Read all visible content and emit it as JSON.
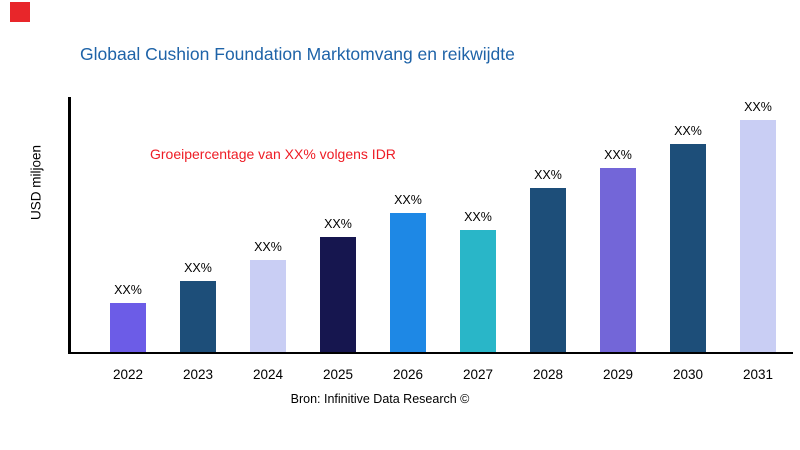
{
  "header": {
    "title": "Globaal Cushion Foundation Marktomvang en reikwijdte",
    "title_color": "#1E63A8",
    "logo_color": "#E8262A"
  },
  "chart_data": {
    "type": "bar",
    "title": "Globaal Cushion Foundation Marktomvang en reikwijdte",
    "ylabel": "USD miljoen",
    "xlabel": "",
    "categories": [
      "2022",
      "2023",
      "2024",
      "2025",
      "2026",
      "2027",
      "2028",
      "2029",
      "2030",
      "2031"
    ],
    "values": [
      49,
      71,
      92,
      115,
      139,
      122,
      164,
      184,
      208,
      232
    ],
    "value_labels": [
      "XX%",
      "XX%",
      "XX%",
      "XX%",
      "XX%",
      "XX%",
      "XX%",
      "XX%",
      "XX%",
      "XX%"
    ],
    "bar_colors": [
      "#6C5CE7",
      "#1D4E79",
      "#C9CEF4",
      "#16164F",
      "#1E88E5",
      "#29B6C8",
      "#1D4E79",
      "#7366D8",
      "#1D4E79",
      "#C9CEF4"
    ],
    "ylim": [
      0,
      255
    ],
    "grid": false,
    "legend": "none",
    "annotation": "Groeipercentage van XX% volgens IDR",
    "annotation_color": "#EE1C25"
  },
  "footer": {
    "source": "Bron: Infinitive Data Research ©"
  }
}
